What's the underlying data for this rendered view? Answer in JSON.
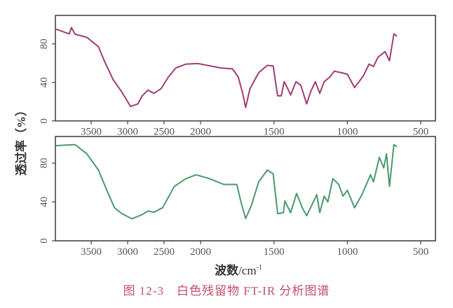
{
  "chart_data": [
    {
      "type": "line",
      "panel": "top",
      "xlabel": "",
      "ylabel": "透过率（%）",
      "x_ticks": [
        3500,
        3000,
        2500,
        2000,
        1500,
        1000,
        500
      ],
      "y_ticks": [
        0,
        40,
        80
      ],
      "xlim": [
        4000,
        400
      ],
      "x_scale": "compressed above 2000 cm-1 (half scale)",
      "ylim": [
        0,
        109
      ],
      "grid": false,
      "color": "#a03c74",
      "points": [
        [
          3980,
          95.3
        ],
        [
          3800,
          90.4
        ],
        [
          3770,
          97
        ],
        [
          3720,
          90
        ],
        [
          3560,
          86.8
        ],
        [
          3400,
          77
        ],
        [
          3320,
          62.5
        ],
        [
          3200,
          43
        ],
        [
          3080,
          30
        ],
        [
          2960,
          15
        ],
        [
          2860,
          17.7
        ],
        [
          2800,
          26
        ],
        [
          2720,
          32
        ],
        [
          2640,
          28.6
        ],
        [
          2540,
          33.5
        ],
        [
          2440,
          45.6
        ],
        [
          2340,
          55
        ],
        [
          2200,
          59
        ],
        [
          2040,
          59.6
        ],
        [
          1861,
          55
        ],
        [
          1782,
          54
        ],
        [
          1743,
          45.6
        ],
        [
          1713,
          28.6
        ],
        [
          1693,
          14
        ],
        [
          1663,
          33.5
        ],
        [
          1604,
          50
        ],
        [
          1545,
          57.7
        ],
        [
          1505,
          57
        ],
        [
          1475,
          26
        ],
        [
          1450,
          26
        ],
        [
          1430,
          40.7
        ],
        [
          1406,
          33.5
        ],
        [
          1386,
          27
        ],
        [
          1350,
          40.7
        ],
        [
          1317,
          37
        ],
        [
          1277,
          17.7
        ],
        [
          1248,
          31
        ],
        [
          1218,
          40.7
        ],
        [
          1188,
          28.6
        ],
        [
          1158,
          40.7
        ],
        [
          1119,
          45.6
        ],
        [
          1089,
          51.6
        ],
        [
          1040,
          50
        ],
        [
          1000,
          48.5
        ],
        [
          951,
          34.6
        ],
        [
          891,
          46.8
        ],
        [
          852,
          59
        ],
        [
          822,
          56.5
        ],
        [
          792,
          66
        ],
        [
          743,
          72
        ],
        [
          713,
          62.5
        ],
        [
          683,
          90.4
        ],
        [
          663,
          88
        ]
      ]
    },
    {
      "type": "line",
      "panel": "bottom",
      "xlabel": "波数/cm⁻¹",
      "ylabel": "透过率（%）",
      "x_ticks": [
        3500,
        3000,
        2500,
        2000,
        1500,
        1000,
        500
      ],
      "y_ticks": [
        0,
        40,
        80
      ],
      "xlim": [
        4000,
        400
      ],
      "x_scale": "compressed above 2000 cm-1 (half scale)",
      "ylim": [
        0,
        107
      ],
      "grid": false,
      "color": "#4a9a6c",
      "points": [
        [
          3980,
          98
        ],
        [
          3720,
          99
        ],
        [
          3560,
          89.6
        ],
        [
          3400,
          72.8
        ],
        [
          3280,
          51
        ],
        [
          3180,
          34
        ],
        [
          3080,
          28
        ],
        [
          2940,
          22.6
        ],
        [
          2800,
          27
        ],
        [
          2720,
          30.6
        ],
        [
          2640,
          29.4
        ],
        [
          2520,
          34
        ],
        [
          2360,
          56
        ],
        [
          2200,
          64
        ],
        [
          2060,
          68
        ],
        [
          1940,
          64
        ],
        [
          1842,
          58
        ],
        [
          1753,
          58
        ],
        [
          1723,
          39
        ],
        [
          1693,
          23
        ],
        [
          1653,
          36.6
        ],
        [
          1604,
          60.7
        ],
        [
          1545,
          72.8
        ],
        [
          1505,
          69
        ],
        [
          1475,
          28
        ],
        [
          1436,
          29
        ],
        [
          1426,
          41
        ],
        [
          1386,
          29
        ],
        [
          1346,
          48.7
        ],
        [
          1307,
          34
        ],
        [
          1277,
          25.8
        ],
        [
          1208,
          47.5
        ],
        [
          1188,
          29
        ],
        [
          1158,
          46
        ],
        [
          1133,
          40
        ],
        [
          1099,
          64
        ],
        [
          1059,
          58
        ],
        [
          1030,
          46
        ],
        [
          1000,
          52
        ],
        [
          951,
          34
        ],
        [
          901,
          47.5
        ],
        [
          842,
          68
        ],
        [
          822,
          60.7
        ],
        [
          782,
          86
        ],
        [
          752,
          75
        ],
        [
          733,
          89.6
        ],
        [
          713,
          56
        ],
        [
          683,
          99
        ],
        [
          663,
          97
        ]
      ]
    }
  ],
  "labels": {
    "ylabel": "透过率（%）",
    "xlabel_main": "波数",
    "xlabel_unit": "/cm",
    "xlabel_sup": "-1",
    "caption": "图 12-3　白色残留物 FT-IR 分析图谱"
  }
}
